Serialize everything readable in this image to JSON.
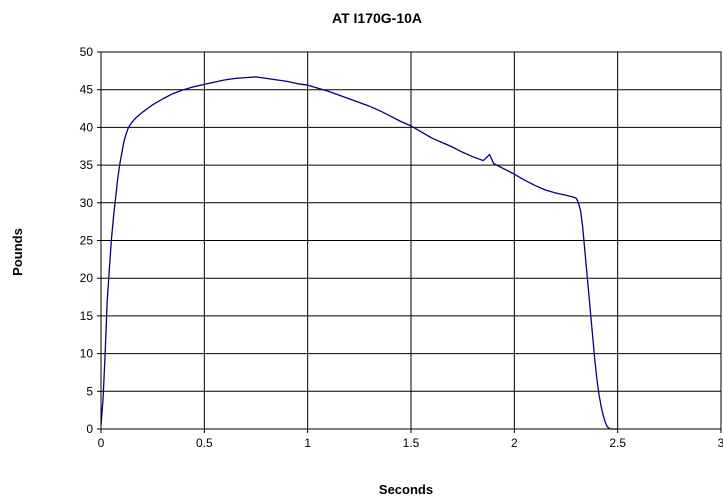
{
  "chart_data": {
    "type": "line",
    "title": "AT I170G-10A",
    "xlabel": "Seconds",
    "ylabel": "Pounds",
    "xlim": [
      0,
      3
    ],
    "ylim": [
      0,
      50
    ],
    "x_ticks": [
      "0",
      "0.5",
      "1",
      "1.5",
      "2",
      "2.5",
      "3"
    ],
    "y_ticks": [
      "0",
      "5",
      "10",
      "15",
      "20",
      "25",
      "30",
      "35",
      "40",
      "45",
      "50"
    ],
    "grid": true,
    "colors": {
      "line": "#000080",
      "grid": "#000000",
      "frame": "#000000"
    },
    "series": [
      {
        "x": [
          0,
          0.01,
          0.02,
          0.03,
          0.04,
          0.05,
          0.06,
          0.07,
          0.08,
          0.09,
          0.1,
          0.11,
          0.12,
          0.13,
          0.14,
          0.15,
          0.17,
          0.2,
          0.25,
          0.3,
          0.35,
          0.4,
          0.45,
          0.5,
          0.55,
          0.6,
          0.65,
          0.7,
          0.75,
          0.8,
          0.85,
          0.9,
          0.95,
          1.0,
          1.05,
          1.1,
          1.15,
          1.2,
          1.25,
          1.3,
          1.35,
          1.4,
          1.45,
          1.5,
          1.55,
          1.6,
          1.65,
          1.7,
          1.75,
          1.8,
          1.85,
          1.88,
          1.9,
          1.95,
          2.0,
          2.05,
          2.1,
          2.15,
          2.2,
          2.25,
          2.28,
          2.3,
          2.31,
          2.32,
          2.33,
          2.34,
          2.35,
          2.36,
          2.37,
          2.38,
          2.39,
          2.4,
          2.41,
          2.42,
          2.43,
          2.44,
          2.45,
          2.46,
          2.47,
          2.5
        ],
        "values": [
          0.5,
          4,
          10,
          17,
          21,
          25,
          28,
          30.5,
          33,
          35,
          36.5,
          38,
          39,
          39.8,
          40.3,
          40.7,
          41.3,
          42,
          43,
          43.8,
          44.5,
          45,
          45.4,
          45.7,
          46,
          46.3,
          46.5,
          46.6,
          46.7,
          46.5,
          46.3,
          46.1,
          45.8,
          45.6,
          45.2,
          44.8,
          44.3,
          43.8,
          43.3,
          42.8,
          42.2,
          41.5,
          40.8,
          40.2,
          39.4,
          38.6,
          38,
          37.4,
          36.7,
          36.1,
          35.6,
          36.4,
          35.2,
          34.5,
          33.8,
          33,
          32.3,
          31.7,
          31.3,
          31,
          30.8,
          30.6,
          30,
          29,
          27,
          24,
          21,
          18,
          15,
          12,
          9,
          6.5,
          4.5,
          3,
          1.8,
          0.9,
          0.3,
          0.05,
          0,
          0
        ]
      }
    ]
  }
}
